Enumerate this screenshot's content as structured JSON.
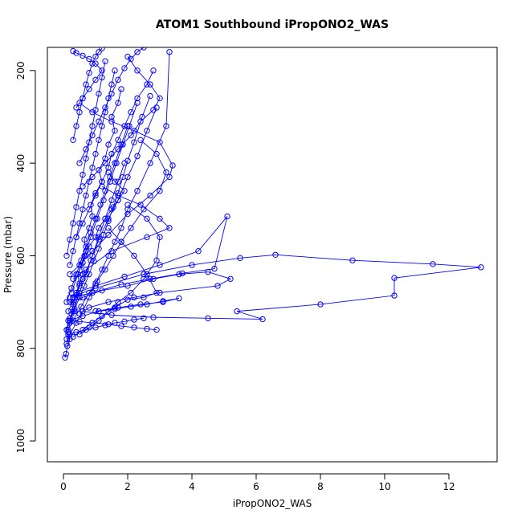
{
  "chart_data": {
    "type": "scatter",
    "title": "ATOM1 Southbound iPropONO2_WAS",
    "xlabel": "iPropONO2_WAS",
    "ylabel": "Pressure (mbar)",
    "xlim": [
      -0.5,
      13.5
    ],
    "ylim": [
      1045,
      150
    ],
    "y_reversed": true,
    "x_ticks": [
      0,
      2,
      4,
      6,
      8,
      10,
      12
    ],
    "x_tick_labels": [
      "0",
      "2",
      "4",
      "6",
      "8",
      "10",
      "12"
    ],
    "y_ticks": [
      200,
      400,
      600,
      800,
      1000
    ],
    "y_tick_labels": [
      "200",
      "400",
      "600",
      "800",
      "1000"
    ],
    "y_tick_label_rotation": "vertical",
    "grid": false,
    "legend": "none",
    "connect_points": true,
    "color": "#0000ff",
    "series": [
      {
        "x": [
          0.05,
          0.08,
          0.12,
          0.2,
          0.1,
          0.15,
          0.35,
          0.3,
          0.4,
          0.5,
          0.6,
          0.55,
          0.7,
          0.8,
          1.0,
          1.1,
          1.3,
          1.5,
          1.7,
          1.9,
          1.6,
          1.4
        ],
        "y": [
          820,
          812,
          795,
          780,
          760,
          740,
          720,
          700,
          680,
          660,
          640,
          620,
          600,
          580,
          560,
          540,
          520,
          500,
          480,
          460,
          440,
          420
        ]
      },
      {
        "x": [
          0.1,
          0.15,
          0.2,
          0.25,
          0.3,
          0.4,
          0.5,
          0.45,
          0.6,
          0.7,
          0.65,
          0.8,
          0.9,
          0.85,
          1.0,
          1.2,
          1.1,
          1.3,
          1.4,
          1.6,
          1.5,
          1.7,
          1.8
        ],
        "y": [
          780,
          765,
          745,
          725,
          705,
          685,
          665,
          640,
          615,
          590,
          565,
          540,
          515,
          490,
          465,
          440,
          415,
          390,
          360,
          330,
          300,
          270,
          240
        ]
      },
      {
        "x": [
          0.2,
          0.6,
          1.2,
          2.0,
          2.8,
          3.6,
          4.5,
          5.2,
          4.8,
          3.0,
          2.2,
          1.4,
          0.8,
          0.5
        ],
        "y": [
          700,
          690,
          675,
          665,
          650,
          640,
          635,
          650,
          665,
          680,
          690,
          700,
          712,
          725
        ]
      },
      {
        "x": [
          0.3,
          0.9,
          1.8,
          2.7,
          3.7,
          4.7,
          5.1,
          4.2,
          3.0,
          1.9,
          1.0,
          0.4
        ],
        "y": [
          690,
          680,
          662,
          650,
          638,
          628,
          515,
          590,
          620,
          645,
          665,
          680
        ]
      },
      {
        "x": [
          0.2,
          1.0,
          2.5,
          4.0,
          5.5,
          6.6,
          9.0,
          11.5,
          13.0,
          10.3,
          10.3,
          8.0,
          5.4,
          6.2,
          4.5,
          2.8,
          1.5,
          0.6
        ],
        "y": [
          690,
          670,
          640,
          620,
          605,
          598,
          610,
          618,
          625,
          648,
          686,
          705,
          720,
          737,
          735,
          733,
          728,
          720
        ]
      },
      {
        "x": [
          0.3,
          0.7,
          1.5,
          2.6,
          3.3,
          3.0,
          2.4,
          1.7,
          1.2
        ],
        "y": [
          650,
          630,
          590,
          560,
          540,
          520,
          490,
          470,
          450
        ]
      },
      {
        "x": [
          0.2,
          0.5,
          0.9,
          1.4,
          2.0,
          2.7,
          3.3,
          3.4,
          3.0,
          2.2,
          1.5,
          0.9,
          0.5
        ],
        "y": [
          640,
          620,
          590,
          555,
          510,
          470,
          430,
          405,
          355,
          330,
          310,
          290,
          270
        ]
      },
      {
        "x": [
          0.15,
          0.3,
          0.55,
          0.8,
          1.05,
          1.3,
          1.55,
          1.8,
          2.1,
          2.5,
          3.0,
          3.2,
          2.9,
          2.4
        ],
        "y": [
          760,
          740,
          710,
          680,
          655,
          630,
          600,
          570,
          540,
          500,
          460,
          420,
          380,
          350
        ]
      },
      {
        "x": [
          0.1,
          0.2,
          0.4,
          0.6,
          0.8,
          1.0,
          1.2,
          1.4,
          1.6,
          1.8,
          2.0,
          2.3,
          2.7,
          3.2,
          3.3
        ],
        "y": [
          790,
          770,
          745,
          720,
          690,
          660,
          630,
          600,
          570,
          540,
          500,
          460,
          400,
          320,
          160
        ]
      },
      {
        "x": [
          0.5,
          0.8,
          1.1,
          1.4,
          1.7,
          2.1,
          2.5,
          2.9,
          3.0,
          2.6,
          2.0
        ],
        "y": [
          770,
          755,
          740,
          720,
          700,
          680,
          650,
          610,
          560,
          520,
          490
        ]
      },
      {
        "x": [
          0.3,
          0.6,
          0.9,
          1.2,
          1.6,
          2.0,
          2.5,
          2.9,
          2.6,
          2.2,
          1.8,
          1.4
        ],
        "y": [
          775,
          760,
          745,
          730,
          712,
          695,
          690,
          680,
          640,
          600,
          570,
          540
        ]
      },
      {
        "x": [
          0.2,
          0.35,
          0.5,
          0.65,
          0.8,
          0.95,
          1.1,
          1.25,
          1.4,
          1.55,
          1.7,
          1.85,
          2.0,
          2.2,
          2.45,
          2.7
        ],
        "y": [
          735,
          715,
          690,
          665,
          640,
          612,
          585,
          555,
          525,
          495,
          465,
          430,
          395,
          355,
          300,
          255
        ]
      },
      {
        "x": [
          0.1,
          0.25,
          0.4,
          0.55,
          0.7,
          0.85,
          1.0,
          1.15,
          1.3,
          1.45,
          1.6,
          1.8,
          2.0
        ],
        "y": [
          700,
          670,
          640,
          610,
          580,
          550,
          520,
          490,
          460,
          430,
          400,
          360,
          320
        ]
      },
      {
        "x": [
          0.4,
          0.6,
          0.8,
          1.0,
          1.2,
          1.4,
          1.5,
          1.7,
          1.9,
          2.1,
          2.3,
          2.6,
          2.8
        ],
        "y": [
          560,
          530,
          500,
          470,
          440,
          410,
          380,
          350,
          320,
          290,
          260,
          230,
          200
        ]
      },
      {
        "x": [
          0.2,
          0.3,
          0.4,
          0.5,
          0.6,
          0.7,
          0.8,
          0.9,
          1.0,
          1.1,
          1.2,
          1.3,
          1.4,
          1.5,
          1.6
        ],
        "y": [
          620,
          590,
          560,
          530,
          500,
          470,
          440,
          410,
          380,
          350,
          320,
          290,
          260,
          230,
          200
        ]
      },
      {
        "x": [
          0.1,
          0.2,
          0.3,
          0.4,
          0.5,
          0.6,
          0.7,
          0.8,
          0.9,
          1.0,
          1.1,
          1.2,
          1.3
        ],
        "y": [
          600,
          565,
          530,
          495,
          460,
          425,
          390,
          355,
          320,
          285,
          250,
          215,
          180
        ]
      },
      {
        "x": [
          0.6,
          0.9,
          1.3,
          1.7,
          2.1,
          2.4,
          2.8,
          3.0,
          2.7,
          2.3,
          2.0
        ],
        "y": [
          450,
          430,
          400,
          370,
          340,
          310,
          285,
          260,
          230,
          200,
          170
        ]
      },
      {
        "x": [
          0.25,
          0.45,
          0.65,
          0.85,
          1.05,
          1.25,
          1.45,
          1.65,
          1.85,
          2.05,
          2.3
        ],
        "y": [
          680,
          640,
          600,
          560,
          520,
          480,
          440,
          400,
          360,
          320,
          270
        ]
      },
      {
        "x": [
          0.15,
          0.35,
          0.6,
          0.85,
          1.1,
          1.4,
          1.7,
          2.0,
          2.3,
          2.6,
          2.9
        ],
        "y": [
          720,
          690,
          650,
          610,
          565,
          520,
          480,
          430,
          385,
          330,
          280
        ]
      },
      {
        "x": [
          0.1,
          0.3,
          0.5,
          0.7,
          0.9,
          1.1,
          1.3,
          1.5,
          1.7,
          1.9
        ],
        "y": [
          760,
          720,
          680,
          640,
          600,
          560,
          520,
          480,
          440,
          400
        ]
      },
      {
        "x": [
          0.5,
          0.7,
          0.9,
          1.1,
          1.3,
          1.5,
          1.7,
          1.9,
          2.1,
          2.3,
          2.5
        ],
        "y": [
          400,
          370,
          340,
          310,
          280,
          250,
          220,
          195,
          175,
          160,
          150
        ]
      },
      {
        "x": [
          0.3,
          0.4,
          0.5,
          0.6,
          0.7,
          0.8,
          0.9,
          1.0,
          1.1,
          1.2
        ],
        "y": [
          350,
          320,
          290,
          260,
          230,
          205,
          185,
          170,
          160,
          152
        ]
      },
      {
        "x": [
          0.2,
          0.6,
          1.1,
          1.6,
          2.1,
          2.6,
          3.1,
          3.6,
          3.1,
          2.4,
          1.7,
          1.0
        ],
        "y": [
          740,
          730,
          720,
          715,
          710,
          705,
          698,
          692,
          700,
          705,
          712,
          720
        ]
      },
      {
        "x": [
          0.2,
          0.5,
          0.9,
          1.4,
          1.8,
          2.2,
          2.6,
          2.9
        ],
        "y": [
          740,
          742,
          745,
          748,
          752,
          755,
          758,
          760
        ]
      },
      {
        "x": [
          0.15,
          0.4,
          0.7,
          1.0,
          1.3,
          1.6,
          1.9,
          2.2,
          2.5
        ],
        "y": [
          770,
          765,
          760,
          755,
          750,
          745,
          742,
          738,
          735
        ]
      },
      {
        "x": [
          0.4,
          0.6,
          0.8,
          1.0,
          1.2,
          1.0,
          0.8,
          0.6,
          0.4,
          0.3
        ],
        "y": [
          280,
          260,
          240,
          220,
          200,
          185,
          175,
          168,
          162,
          158
        ]
      }
    ]
  }
}
